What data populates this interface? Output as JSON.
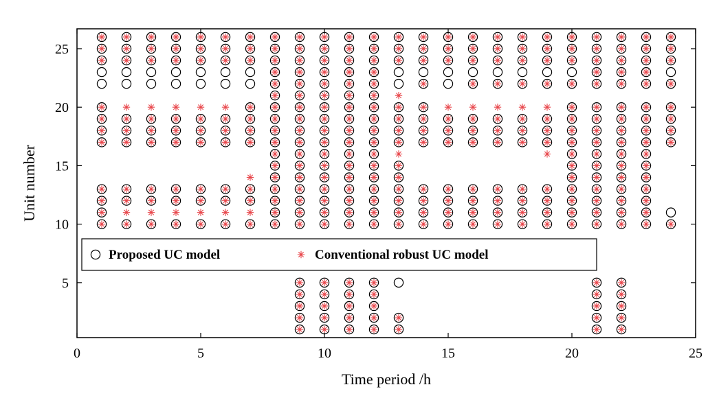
{
  "chart_data": {
    "type": "scatter",
    "xlabel": "Time period /h",
    "ylabel": "Unit number",
    "xlim": [
      0,
      25
    ],
    "ylim": [
      0.3,
      26.7
    ],
    "xticks": [
      0,
      5,
      10,
      15,
      20,
      25
    ],
    "yticks": [
      5,
      10,
      15,
      20,
      25
    ],
    "grid": false,
    "legend_position": "middle-left",
    "series": [
      {
        "name": "Proposed UC model",
        "marker": "circle",
        "color": "#000000",
        "on_units_by_hour": {
          "1": [
            10,
            11,
            12,
            13,
            17,
            18,
            19,
            20,
            22,
            23,
            24,
            25,
            26
          ],
          "2": [
            10,
            12,
            13,
            17,
            18,
            19,
            22,
            23,
            24,
            25,
            26
          ],
          "3": [
            10,
            12,
            13,
            17,
            18,
            19,
            22,
            23,
            24,
            25,
            26
          ],
          "4": [
            10,
            12,
            13,
            17,
            18,
            19,
            22,
            23,
            24,
            25,
            26
          ],
          "5": [
            10,
            12,
            13,
            17,
            18,
            19,
            22,
            23,
            24,
            25,
            26
          ],
          "6": [
            10,
            12,
            13,
            17,
            18,
            19,
            22,
            23,
            24,
            25,
            26
          ],
          "7": [
            10,
            12,
            13,
            17,
            18,
            19,
            20,
            22,
            23,
            24,
            25,
            26
          ],
          "8": [
            10,
            11,
            12,
            13,
            14,
            15,
            16,
            17,
            18,
            19,
            20,
            21,
            22,
            23,
            24,
            25,
            26
          ],
          "9": [
            1,
            2,
            3,
            4,
            5,
            10,
            11,
            12,
            13,
            14,
            15,
            16,
            17,
            18,
            19,
            20,
            21,
            22,
            23,
            24,
            25,
            26
          ],
          "10": [
            1,
            2,
            3,
            4,
            5,
            10,
            11,
            12,
            13,
            14,
            15,
            16,
            17,
            18,
            19,
            20,
            21,
            22,
            23,
            24,
            25,
            26
          ],
          "11": [
            1,
            2,
            3,
            4,
            5,
            10,
            11,
            12,
            13,
            14,
            15,
            16,
            17,
            18,
            19,
            20,
            21,
            22,
            23,
            24,
            25,
            26
          ],
          "12": [
            1,
            2,
            3,
            4,
            5,
            10,
            11,
            12,
            13,
            14,
            15,
            16,
            17,
            18,
            19,
            20,
            21,
            22,
            23,
            24,
            25,
            26
          ],
          "13": [
            1,
            2,
            5,
            10,
            11,
            12,
            13,
            14,
            15,
            17,
            18,
            19,
            20,
            22,
            23,
            24,
            25,
            26
          ],
          "14": [
            10,
            11,
            12,
            13,
            17,
            18,
            19,
            20,
            22,
            23,
            24,
            25,
            26
          ],
          "15": [
            10,
            11,
            12,
            13,
            17,
            18,
            19,
            22,
            23,
            24,
            25,
            26
          ],
          "16": [
            10,
            11,
            12,
            13,
            17,
            18,
            19,
            22,
            23,
            24,
            25,
            26
          ],
          "17": [
            10,
            11,
            12,
            13,
            17,
            18,
            19,
            22,
            23,
            24,
            25,
            26
          ],
          "18": [
            10,
            11,
            12,
            13,
            17,
            18,
            19,
            22,
            23,
            24,
            25,
            26
          ],
          "19": [
            10,
            11,
            12,
            13,
            17,
            18,
            19,
            22,
            23,
            24,
            25,
            26
          ],
          "20": [
            10,
            11,
            12,
            13,
            14,
            15,
            16,
            17,
            18,
            19,
            20,
            22,
            23,
            24,
            25,
            26
          ],
          "21": [
            1,
            2,
            3,
            4,
            5,
            10,
            11,
            12,
            13,
            14,
            15,
            16,
            17,
            18,
            19,
            20,
            22,
            23,
            24,
            25,
            26
          ],
          "22": [
            1,
            2,
            3,
            4,
            5,
            10,
            11,
            12,
            13,
            14,
            15,
            16,
            17,
            18,
            19,
            20,
            22,
            23,
            24,
            25,
            26
          ],
          "23": [
            10,
            11,
            12,
            13,
            14,
            15,
            16,
            17,
            18,
            19,
            20,
            22,
            23,
            24,
            25,
            26
          ],
          "24": [
            10,
            11,
            17,
            18,
            19,
            20,
            22,
            23,
            24,
            25,
            26
          ]
        }
      },
      {
        "name": "Conventional robust UC model",
        "marker": "asterisk",
        "color": "#e8454a",
        "on_units_by_hour": {
          "1": [
            10,
            11,
            12,
            13,
            17,
            18,
            19,
            20,
            24,
            25,
            26
          ],
          "2": [
            10,
            11,
            12,
            13,
            17,
            18,
            19,
            20,
            24,
            25,
            26
          ],
          "3": [
            10,
            11,
            12,
            13,
            17,
            18,
            19,
            20,
            24,
            25,
            26
          ],
          "4": [
            10,
            11,
            12,
            13,
            17,
            18,
            19,
            20,
            24,
            25,
            26
          ],
          "5": [
            10,
            11,
            12,
            13,
            17,
            18,
            19,
            20,
            24,
            25,
            26
          ],
          "6": [
            10,
            11,
            12,
            13,
            17,
            18,
            19,
            20,
            24,
            25,
            26
          ],
          "7": [
            10,
            11,
            12,
            13,
            14,
            17,
            18,
            19,
            20,
            24,
            25,
            26
          ],
          "8": [
            10,
            11,
            12,
            13,
            14,
            15,
            16,
            17,
            18,
            19,
            20,
            21,
            22,
            23,
            24,
            25,
            26
          ],
          "9": [
            1,
            2,
            3,
            4,
            5,
            10,
            11,
            12,
            13,
            14,
            15,
            16,
            17,
            18,
            19,
            20,
            21,
            22,
            23,
            24,
            25,
            26
          ],
          "10": [
            1,
            2,
            3,
            4,
            5,
            10,
            11,
            12,
            13,
            14,
            15,
            16,
            17,
            18,
            19,
            20,
            21,
            22,
            23,
            24,
            25,
            26
          ],
          "11": [
            1,
            2,
            3,
            4,
            5,
            10,
            11,
            12,
            13,
            14,
            15,
            16,
            17,
            18,
            19,
            20,
            21,
            22,
            23,
            24,
            25,
            26
          ],
          "12": [
            1,
            2,
            3,
            4,
            5,
            10,
            11,
            12,
            13,
            14,
            15,
            16,
            17,
            18,
            19,
            20,
            21,
            22,
            23,
            24,
            25,
            26
          ],
          "13": [
            1,
            2,
            10,
            11,
            12,
            13,
            14,
            15,
            16,
            17,
            18,
            19,
            20,
            21,
            24,
            25,
            26
          ],
          "14": [
            10,
            11,
            12,
            13,
            17,
            18,
            19,
            20,
            22,
            24,
            25,
            26
          ],
          "15": [
            10,
            11,
            12,
            13,
            17,
            18,
            19,
            20,
            24,
            25,
            26
          ],
          "16": [
            10,
            11,
            12,
            13,
            17,
            18,
            19,
            20,
            22,
            24,
            25,
            26
          ],
          "17": [
            10,
            11,
            12,
            13,
            17,
            18,
            19,
            20,
            22,
            24,
            25,
            26
          ],
          "18": [
            10,
            11,
            12,
            13,
            17,
            18,
            19,
            20,
            22,
            24,
            25,
            26
          ],
          "19": [
            10,
            11,
            12,
            13,
            16,
            17,
            18,
            19,
            20,
            22,
            24,
            25,
            26
          ],
          "20": [
            10,
            11,
            12,
            13,
            14,
            15,
            16,
            17,
            18,
            19,
            20,
            22,
            24,
            25,
            26
          ],
          "21": [
            1,
            2,
            3,
            4,
            5,
            10,
            11,
            12,
            13,
            14,
            15,
            16,
            17,
            18,
            19,
            20,
            22,
            23,
            24,
            25,
            26
          ],
          "22": [
            1,
            2,
            3,
            4,
            5,
            10,
            11,
            12,
            13,
            14,
            15,
            16,
            17,
            18,
            19,
            20,
            22,
            23,
            24,
            25,
            26
          ],
          "23": [
            10,
            11,
            12,
            13,
            14,
            15,
            16,
            17,
            18,
            19,
            20,
            22,
            23,
            24,
            25,
            26
          ],
          "24": [
            10,
            17,
            18,
            19,
            20,
            22,
            24,
            25,
            26
          ]
        }
      }
    ]
  }
}
